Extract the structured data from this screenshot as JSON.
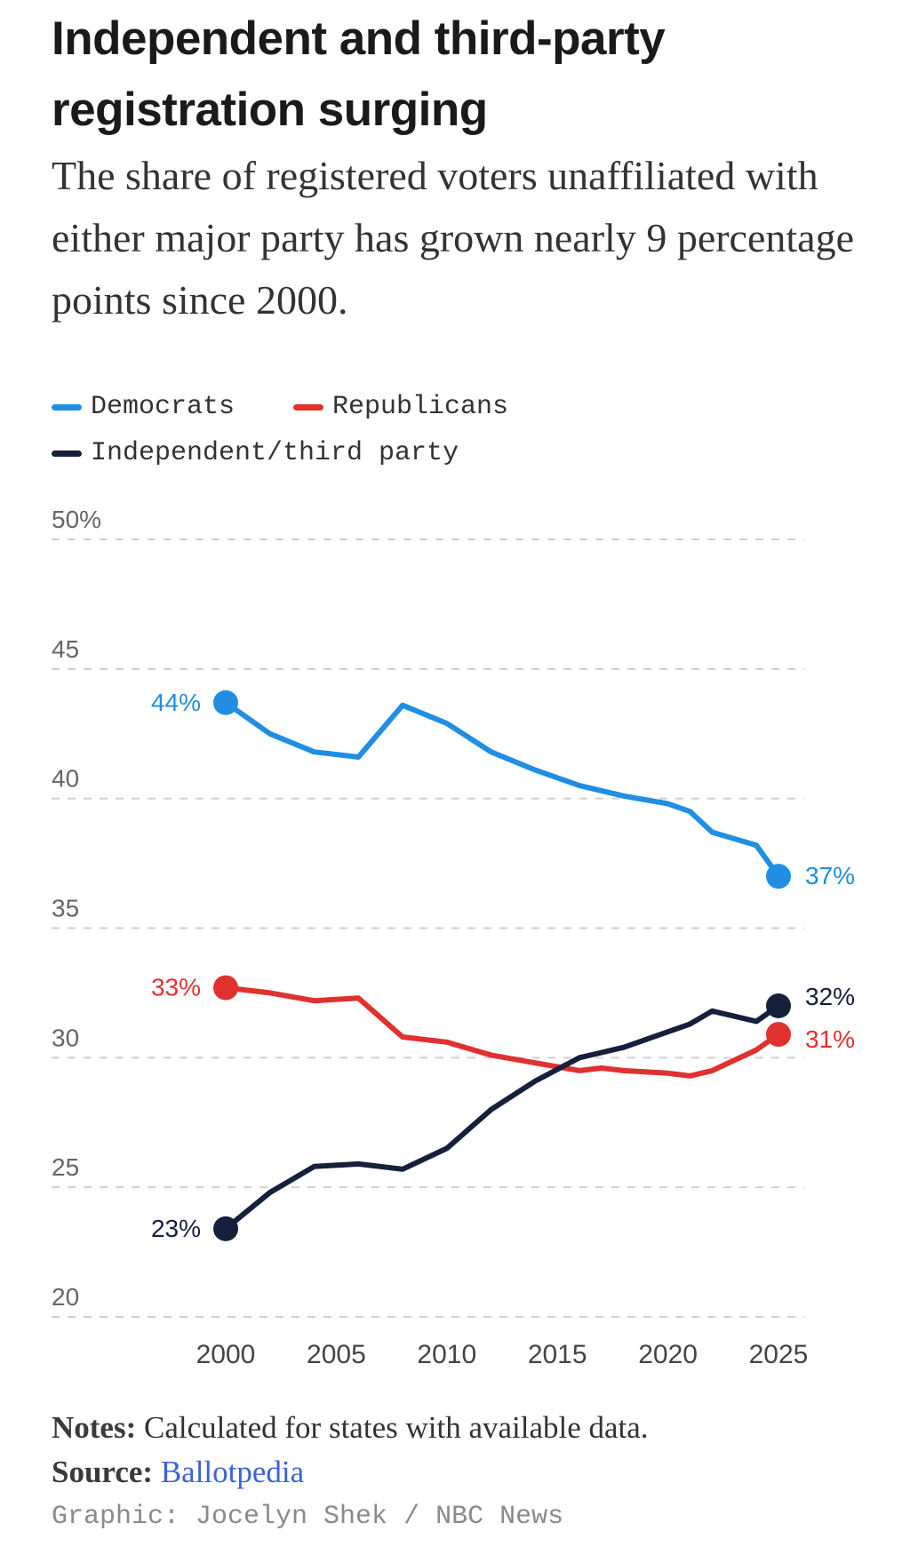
{
  "title": "Independent and third-party registration surging",
  "subtitle": "The share of registered voters unaffiliated with either major party has grown nearly 9 percentage points since 2000.",
  "colors": {
    "democrats": "#1f8ee3",
    "republicans": "#e0312f",
    "independent": "#15203b"
  },
  "legend": {
    "democrats": "Democrats",
    "republicans": "Republicans",
    "independent": "Independent/third party"
  },
  "chart_data": {
    "type": "line",
    "title": "Independent and third-party registration surging",
    "xlabel": "",
    "ylabel": "",
    "xlim": [
      1996,
      2026
    ],
    "ylim": [
      20,
      50
    ],
    "y_ticks": [
      20,
      25,
      30,
      35,
      40,
      45,
      50
    ],
    "y_tick_labels": [
      "20",
      "25",
      "30",
      "35",
      "40",
      "45",
      "50%"
    ],
    "x_ticks": [
      2000,
      2005,
      2010,
      2015,
      2020,
      2025
    ],
    "x_tick_labels": [
      "2000",
      "2005",
      "2010",
      "2015",
      "2020",
      "2025"
    ],
    "grid": true,
    "legend_position": "top-left",
    "series": [
      {
        "key": "democrats",
        "name": "Democrats",
        "x": [
          2000,
          2002,
          2004,
          2006,
          2008,
          2010,
          2012,
          2014,
          2016,
          2018,
          2020,
          2021,
          2022,
          2024,
          2025
        ],
        "values": [
          43.7,
          42.5,
          41.8,
          41.6,
          43.6,
          42.9,
          41.8,
          41.1,
          40.5,
          40.1,
          39.8,
          39.5,
          38.7,
          38.2,
          37.0
        ],
        "start_label": "44%",
        "end_label": "37%"
      },
      {
        "key": "republicans",
        "name": "Republicans",
        "x": [
          2000,
          2002,
          2004,
          2006,
          2008,
          2010,
          2012,
          2014,
          2016,
          2017,
          2018,
          2020,
          2021,
          2022,
          2024,
          2025
        ],
        "values": [
          32.7,
          32.5,
          32.2,
          32.3,
          30.8,
          30.6,
          30.1,
          29.8,
          29.5,
          29.6,
          29.5,
          29.4,
          29.3,
          29.5,
          30.3,
          30.9
        ],
        "start_label": "33%",
        "end_label": "31%"
      },
      {
        "key": "independent",
        "name": "Independent/third party",
        "x": [
          2000,
          2002,
          2004,
          2006,
          2008,
          2010,
          2012,
          2014,
          2016,
          2017,
          2018,
          2020,
          2021,
          2022,
          2024,
          2025
        ],
        "values": [
          23.4,
          24.8,
          25.8,
          25.9,
          25.7,
          26.5,
          28.0,
          29.1,
          30.0,
          30.2,
          30.4,
          31.0,
          31.3,
          31.8,
          31.4,
          32.0
        ],
        "start_label": "23%",
        "end_label": "32%"
      }
    ]
  },
  "notes": {
    "label": "Notes:",
    "text": "Calculated for states with available data."
  },
  "source": {
    "label": "Source:",
    "link": "Ballotpedia"
  },
  "credit": "Graphic: Jocelyn Shek / NBC News"
}
